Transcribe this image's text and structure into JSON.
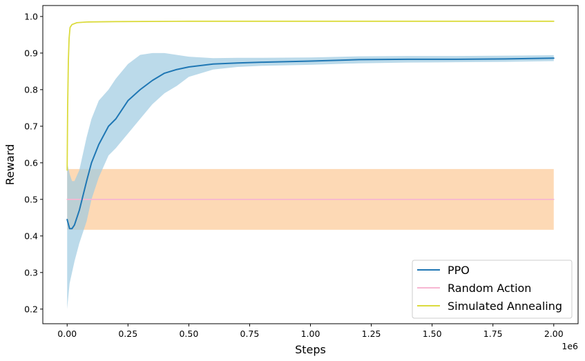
{
  "chart_data": {
    "type": "line",
    "title": "",
    "xlabel": "Steps",
    "ylabel": "Reward",
    "x_offset_label": "1e6",
    "xlim": [
      -0.1,
      2.1
    ],
    "ylim": [
      0.16,
      1.03
    ],
    "xticks": [
      0.0,
      0.25,
      0.5,
      0.75,
      1.0,
      1.25,
      1.5,
      1.75,
      2.0
    ],
    "xtick_labels": [
      "0.00",
      "0.25",
      "0.50",
      "0.75",
      "1.00",
      "1.25",
      "1.50",
      "1.75",
      "2.00"
    ],
    "yticks": [
      0.2,
      0.3,
      0.4,
      0.5,
      0.6,
      0.7,
      0.8,
      0.9,
      1.0
    ],
    "ytick_labels": [
      "0.2",
      "0.3",
      "0.4",
      "0.5",
      "0.6",
      "0.7",
      "0.8",
      "0.9",
      "1.0"
    ],
    "grid": false,
    "legend_position": "lower-right",
    "series": [
      {
        "name": "PPO",
        "color": "#1f77b4",
        "band_color": "#9ecae1",
        "x": [
          0.0,
          0.01,
          0.02,
          0.03,
          0.05,
          0.08,
          0.1,
          0.13,
          0.17,
          0.2,
          0.25,
          0.3,
          0.35,
          0.4,
          0.45,
          0.5,
          0.6,
          0.7,
          0.8,
          1.0,
          1.2,
          1.4,
          1.6,
          1.8,
          2.0
        ],
        "y": [
          0.445,
          0.42,
          0.42,
          0.43,
          0.47,
          0.55,
          0.6,
          0.65,
          0.7,
          0.72,
          0.77,
          0.8,
          0.825,
          0.845,
          0.855,
          0.862,
          0.87,
          0.873,
          0.875,
          0.878,
          0.882,
          0.883,
          0.883,
          0.884,
          0.886
        ],
        "lower": [
          0.2,
          0.27,
          0.3,
          0.33,
          0.38,
          0.44,
          0.5,
          0.56,
          0.62,
          0.64,
          0.68,
          0.72,
          0.76,
          0.79,
          0.81,
          0.835,
          0.855,
          0.862,
          0.865,
          0.868,
          0.872,
          0.874,
          0.875,
          0.876,
          0.878
        ],
        "upper": [
          0.6,
          0.57,
          0.55,
          0.55,
          0.58,
          0.67,
          0.72,
          0.77,
          0.8,
          0.83,
          0.87,
          0.895,
          0.9,
          0.9,
          0.895,
          0.89,
          0.886,
          0.887,
          0.887,
          0.888,
          0.891,
          0.892,
          0.892,
          0.893,
          0.894
        ]
      },
      {
        "name": "Random Action",
        "color": "#f7b6d2",
        "band_color": "#fdd0a2",
        "x": [
          0.0,
          2.0
        ],
        "y": [
          0.5,
          0.5
        ],
        "lower": [
          0.417,
          0.417
        ],
        "upper": [
          0.583,
          0.583
        ]
      },
      {
        "name": "Simulated Annealing",
        "color": "#dbdb3d",
        "x": [
          0.0,
          0.002,
          0.005,
          0.008,
          0.012,
          0.02,
          0.04,
          0.08,
          0.2,
          0.5,
          1.0,
          2.0
        ],
        "y": [
          0.58,
          0.75,
          0.88,
          0.94,
          0.97,
          0.978,
          0.983,
          0.985,
          0.986,
          0.987,
          0.987,
          0.987
        ]
      }
    ]
  }
}
